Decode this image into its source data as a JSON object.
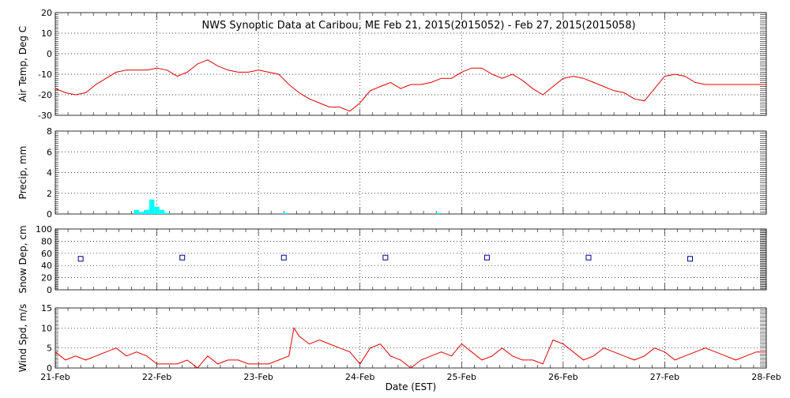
{
  "title": "NWS Synoptic Data at Caribou, ME   Feb 21, 2015(2015052) - Feb 27, 2015(2015058)",
  "xlabel": "Date (EST)",
  "x_ticks": [
    "21-Feb",
    "22-Feb",
    "23-Feb",
    "24-Feb",
    "25-Feb",
    "26-Feb",
    "27-Feb",
    "28-Feb"
  ],
  "colors": {
    "temp": "#e00000",
    "precip": "#00ffff",
    "snow": "#00008b",
    "wind": "#e00000"
  },
  "chart_data": [
    {
      "type": "line",
      "ylabel": "Air Temp, Deg C",
      "ylim": [
        -30,
        20
      ],
      "yticks": [
        "20",
        "10",
        "0",
        "-10",
        "-20",
        "-30"
      ],
      "grid": true,
      "series": [
        {
          "x_days": [
            0,
            0.1,
            0.2,
            0.3,
            0.4,
            0.5,
            0.6,
            0.7,
            0.8,
            0.9,
            1.0,
            1.1,
            1.2,
            1.3,
            1.4,
            1.5,
            1.6,
            1.7,
            1.8,
            1.9,
            2.0,
            2.1,
            2.2,
            2.3,
            2.4,
            2.5,
            2.6,
            2.7,
            2.8,
            2.9,
            3.0,
            3.1,
            3.2,
            3.25,
            3.3,
            3.4,
            3.5,
            3.6,
            3.7,
            3.8,
            3.9,
            4.0,
            4.1,
            4.2,
            4.3,
            4.4,
            4.5,
            4.6,
            4.7,
            4.8,
            4.9,
            5.0,
            5.1,
            5.2,
            5.3,
            5.4,
            5.5,
            5.6,
            5.7,
            5.8,
            5.9,
            6.0,
            6.1,
            6.2,
            6.3,
            6.4,
            6.5,
            6.6,
            6.7,
            6.8,
            6.9,
            7.0
          ],
          "values": [
            -17,
            -19,
            -20,
            -19,
            -15,
            -12,
            -9,
            -8,
            -8,
            -8,
            -7,
            -8,
            -11,
            -9,
            -5,
            -3,
            -6,
            -8,
            -9,
            -9,
            -8,
            -9,
            -10,
            -15,
            -19,
            -22,
            -24,
            -26,
            -26,
            -28,
            -24,
            -18,
            -16,
            -15,
            -14,
            -17,
            -15,
            -15,
            -14,
            -12,
            -12,
            -9,
            -7,
            -7,
            -10,
            -12,
            -10,
            -13,
            -17,
            -20,
            -16,
            -12,
            -11,
            -12,
            -14,
            -16,
            -18,
            -19,
            -22,
            -23,
            -17,
            -11,
            -10,
            -11,
            -14,
            -15,
            -15,
            -15,
            -15,
            -15,
            -15,
            -15
          ]
        }
      ]
    },
    {
      "type": "bar",
      "ylabel": "Precip, mm",
      "ylim": [
        0,
        8
      ],
      "yticks": [
        "8",
        "6",
        "4",
        "2",
        "0"
      ],
      "grid": true,
      "series": [
        {
          "x_days": [
            0.8,
            0.85,
            0.9,
            0.95,
            1.0,
            1.05,
            1.1,
            2.27,
            3.77
          ],
          "values": [
            0.4,
            0.2,
            0.4,
            1.4,
            0.7,
            0.4,
            0.1,
            0.1,
            0.1
          ]
        }
      ]
    },
    {
      "type": "scatter",
      "ylabel": "Snow Dep, cm",
      "ylim": [
        0,
        100
      ],
      "yticks": [
        "100",
        "80",
        "60",
        "40",
        "20",
        "0"
      ],
      "grid": true,
      "series": [
        {
          "x_days": [
            0.25,
            1.25,
            2.25,
            3.25,
            4.25,
            5.25,
            6.25
          ],
          "values": [
            51,
            53,
            53,
            53,
            53,
            53,
            51
          ]
        }
      ]
    },
    {
      "type": "line",
      "ylabel": "Wind Spd, m/s",
      "ylim": [
        0,
        15
      ],
      "yticks": [
        "15",
        "10",
        "5",
        "0"
      ],
      "grid": true,
      "series": [
        {
          "x_days": [
            0,
            0.1,
            0.2,
            0.3,
            0.4,
            0.5,
            0.6,
            0.7,
            0.8,
            0.9,
            1.0,
            1.1,
            1.2,
            1.3,
            1.4,
            1.5,
            1.6,
            1.7,
            1.8,
            1.9,
            2.0,
            2.1,
            2.2,
            2.3,
            2.35,
            2.4,
            2.5,
            2.6,
            2.7,
            2.8,
            2.9,
            3.0,
            3.1,
            3.2,
            3.3,
            3.4,
            3.5,
            3.6,
            3.7,
            3.8,
            3.9,
            4.0,
            4.1,
            4.2,
            4.3,
            4.4,
            4.5,
            4.6,
            4.7,
            4.8,
            4.9,
            5.0,
            5.1,
            5.2,
            5.3,
            5.4,
            5.5,
            5.6,
            5.7,
            5.8,
            5.9,
            6.0,
            6.1,
            6.2,
            6.3,
            6.4,
            6.5,
            6.6,
            6.7,
            6.8,
            6.9,
            7.0
          ],
          "values": [
            4,
            2,
            3,
            2,
            3,
            4,
            5,
            3,
            4,
            3,
            1,
            1,
            1,
            2,
            0,
            3,
            1,
            2,
            2,
            1,
            1,
            1,
            2,
            3,
            10,
            8,
            6,
            7,
            6,
            5,
            4,
            1,
            5,
            6,
            3,
            2,
            0,
            2,
            3,
            4,
            3,
            6,
            4,
            2,
            3,
            5,
            3,
            2,
            2,
            1,
            7,
            6,
            4,
            2,
            3,
            5,
            4,
            3,
            2,
            3,
            5,
            4,
            2,
            3,
            4,
            5,
            4,
            3,
            2,
            3,
            4,
            4
          ]
        }
      ]
    }
  ]
}
